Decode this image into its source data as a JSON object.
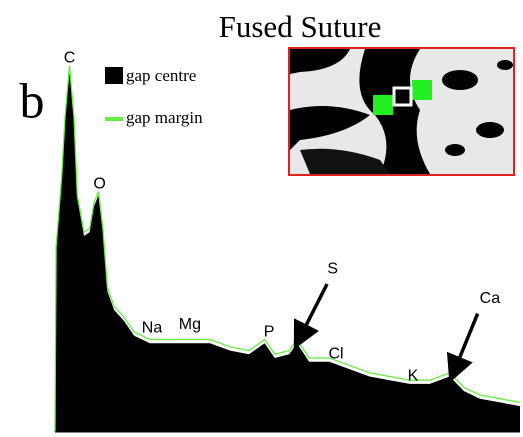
{
  "chart_data": {
    "type": "area",
    "title": "Fused Suture",
    "panel_label": "b",
    "x": [
      0.15,
      0.16,
      0.21,
      0.24,
      0.28,
      0.32,
      0.35,
      0.41,
      0.46,
      0.5,
      0.54,
      0.58,
      0.62,
      0.68,
      0.77,
      0.86,
      1.0,
      1.18,
      1.36,
      1.54,
      1.72,
      1.89,
      2.03,
      2.12,
      2.25,
      2.32,
      2.43,
      2.61,
      2.79,
      2.97,
      3.15,
      3.33,
      3.51,
      3.69,
      3.82,
      3.96,
      4.14,
      4.32
    ],
    "series": [
      {
        "name": "gap centre",
        "color": "#000000",
        "values": [
          0,
          49,
          68,
          84,
          98,
          84,
          63,
          53,
          54,
          61,
          64,
          54,
          38,
          33,
          30,
          26,
          24,
          24,
          24,
          24,
          22,
          21,
          24,
          20,
          21,
          24,
          19,
          19,
          17,
          15,
          14,
          13,
          13,
          15,
          11,
          9,
          8,
          7
        ]
      },
      {
        "name": "gap margin",
        "color": "#66ee44",
        "values": [
          0,
          50,
          69,
          85,
          99,
          85,
          64,
          54,
          55,
          62,
          65,
          55,
          39,
          34,
          31,
          27,
          25,
          25,
          25,
          25,
          23,
          22,
          25,
          21,
          22,
          25,
          20,
          20,
          18,
          16,
          15,
          14,
          14,
          16,
          12,
          10,
          9,
          8
        ]
      }
    ],
    "xlim": [
      0.15,
      4.32
    ],
    "ylim": [
      0,
      105
    ],
    "annotations": [
      {
        "text": "C",
        "x": 0.28,
        "y": 101
      },
      {
        "text": "O",
        "x": 0.55,
        "y": 67
      },
      {
        "text": "Na",
        "x": 1.02,
        "y": 28
      },
      {
        "text": "Mg",
        "x": 1.36,
        "y": 29
      },
      {
        "text": "P",
        "x": 2.07,
        "y": 27
      },
      {
        "text": "S",
        "x": 2.64,
        "y": 44,
        "arrow": [
          2.59,
          40,
          2.32,
          24
        ]
      },
      {
        "text": "Cl",
        "x": 2.67,
        "y": 21
      },
      {
        "text": "K",
        "x": 3.36,
        "y": 15
      },
      {
        "text": "Ca",
        "x": 4.05,
        "y": 36,
        "arrow": [
          3.94,
          32,
          3.71,
          15
        ]
      }
    ]
  }
}
